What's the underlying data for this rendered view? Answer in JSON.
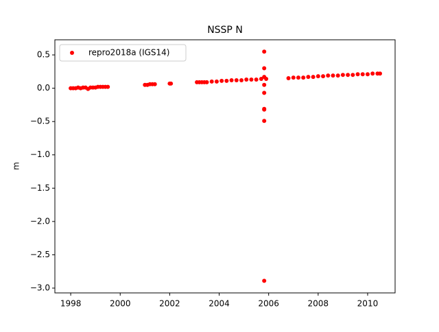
{
  "chart_data": {
    "type": "scatter",
    "title": "NSSP N",
    "ylabel": "m",
    "x": [
      1998.0,
      1998.1,
      1998.2,
      1998.3,
      1998.4,
      1998.5,
      1998.6,
      1998.7,
      1998.8,
      1998.9,
      1999.0,
      1999.1,
      1999.2,
      1999.3,
      1999.4,
      1999.5,
      2001.0,
      2001.1,
      2001.2,
      2001.3,
      2001.4,
      2002.0,
      2002.05,
      2003.1,
      2003.2,
      2003.3,
      2003.4,
      2003.5,
      2003.7,
      2003.9,
      2004.1,
      2004.3,
      2004.5,
      2004.7,
      2004.9,
      2005.1,
      2005.3,
      2005.5,
      2005.7,
      2005.9,
      2005.82,
      2005.82,
      2005.82,
      2005.82,
      2005.82,
      2005.82,
      2005.82,
      2005.82,
      2005.82,
      2006.8,
      2007.0,
      2007.2,
      2007.4,
      2007.6,
      2007.8,
      2008.0,
      2008.2,
      2008.4,
      2008.6,
      2008.8,
      2009.0,
      2009.2,
      2009.4,
      2009.6,
      2009.8,
      2010.0,
      2010.2,
      2010.4,
      2010.5
    ],
    "series": [
      {
        "name": "repro2018a (IGS14)",
        "color": "#ff0000",
        "values": [
          0.0,
          0.0,
          0.0,
          0.01,
          0.0,
          0.01,
          0.01,
          -0.01,
          0.01,
          0.01,
          0.01,
          0.02,
          0.02,
          0.02,
          0.02,
          0.02,
          0.05,
          0.05,
          0.06,
          0.06,
          0.06,
          0.07,
          0.07,
          0.09,
          0.09,
          0.09,
          0.09,
          0.09,
          0.1,
          0.1,
          0.11,
          0.11,
          0.12,
          0.12,
          0.12,
          0.13,
          0.13,
          0.13,
          0.14,
          0.14,
          0.55,
          0.3,
          0.17,
          0.05,
          -0.07,
          -0.31,
          -0.32,
          -0.49,
          -2.89,
          0.15,
          0.16,
          0.16,
          0.16,
          0.17,
          0.17,
          0.18,
          0.18,
          0.19,
          0.19,
          0.19,
          0.2,
          0.2,
          0.2,
          0.21,
          0.21,
          0.21,
          0.22,
          0.22,
          0.22
        ]
      }
    ],
    "xlim": [
      1997.36,
      2011.11
    ],
    "ylim": [
      -3.072,
      0.727
    ],
    "xticks": [
      1998,
      2000,
      2002,
      2004,
      2006,
      2008,
      2010
    ],
    "yticks": [
      {
        "value": 0.5,
        "label": "0.5"
      },
      {
        "value": 0,
        "label": "0.0"
      },
      {
        "value": -0.5,
        "label": "−0.5"
      },
      {
        "value": -1,
        "label": "−1.0"
      },
      {
        "value": -1.5,
        "label": "−1.5"
      },
      {
        "value": -2,
        "label": "−2.0"
      },
      {
        "value": -2.5,
        "label": "−2.5"
      },
      {
        "value": -3,
        "label": "−3.0"
      }
    ],
    "legend": "upper left"
  }
}
